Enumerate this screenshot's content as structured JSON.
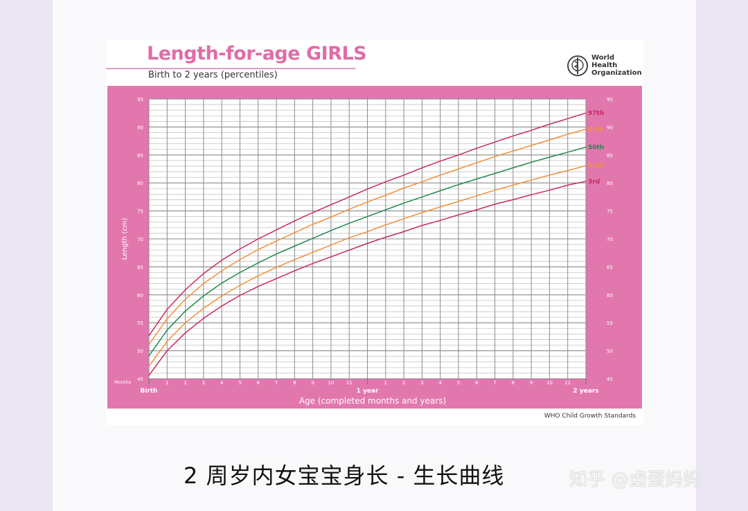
{
  "header": {
    "title": "Length-for-age GIRLS",
    "subtitle": "Birth to 2 years (percentiles)",
    "logo_text": "World Health Organization"
  },
  "footer": "WHO Child Growth Standards",
  "caption": "2 周岁内女宝宝身长 - 生长曲线",
  "watermark": "知乎 @卤蛋妈妈",
  "colors": {
    "frame": "#e277ae",
    "title": "#e06ca6",
    "p97_p3": "#c8285e",
    "p85_p15": "#f0903a",
    "p50": "#1f8a4c"
  },
  "chart_data": {
    "type": "line",
    "title": "Length-for-age GIRLS",
    "subtitle": "Birth to 2 years (percentiles)",
    "xlabel": "Age (completed months and years)",
    "ylabel": "Length (cm)",
    "months_label": "Months",
    "x_unit": "months",
    "xlim": [
      0,
      24
    ],
    "ylim": [
      45,
      95
    ],
    "y_ticks": [
      45,
      50,
      55,
      60,
      65,
      70,
      75,
      80,
      85,
      90,
      95
    ],
    "x_tick_labels": [
      "1",
      "2",
      "3",
      "4",
      "5",
      "6",
      "7",
      "8",
      "9",
      "10",
      "11",
      "",
      "1",
      "2",
      "3",
      "4",
      "5",
      "6",
      "7",
      "8",
      "9",
      "10",
      "11"
    ],
    "x_major_labels": [
      {
        "month": 0,
        "label": "Birth"
      },
      {
        "month": 12,
        "label": "1 year"
      },
      {
        "month": 24,
        "label": "2 years"
      }
    ],
    "grid": true,
    "x": [
      0,
      1,
      2,
      3,
      4,
      5,
      6,
      7,
      8,
      9,
      10,
      11,
      12,
      13,
      14,
      15,
      16,
      17,
      18,
      19,
      20,
      21,
      22,
      23,
      24
    ],
    "series": [
      {
        "name": "97th",
        "color": "#c8285e",
        "values": [
          52.7,
          57.4,
          60.9,
          63.8,
          66.2,
          68.2,
          70.0,
          71.6,
          73.2,
          74.7,
          76.1,
          77.5,
          78.9,
          80.2,
          81.4,
          82.7,
          83.9,
          85.0,
          86.2,
          87.3,
          88.4,
          89.4,
          90.5,
          91.5,
          92.5
        ]
      },
      {
        "name": "85th",
        "color": "#f0903a",
        "values": [
          51.1,
          55.7,
          59.2,
          62.0,
          64.3,
          66.3,
          68.1,
          69.6,
          71.1,
          72.6,
          73.9,
          75.3,
          76.6,
          77.8,
          79.1,
          80.2,
          81.4,
          82.5,
          83.6,
          84.7,
          85.7,
          86.7,
          87.7,
          88.7,
          89.6
        ]
      },
      {
        "name": "50th",
        "color": "#1f8a4c",
        "values": [
          49.1,
          53.7,
          57.1,
          59.8,
          62.1,
          64.0,
          65.7,
          67.3,
          68.7,
          70.1,
          71.5,
          72.8,
          74.0,
          75.2,
          76.4,
          77.5,
          78.6,
          79.7,
          80.7,
          81.7,
          82.7,
          83.7,
          84.6,
          85.5,
          86.4
        ]
      },
      {
        "name": "15th",
        "color": "#f0903a",
        "values": [
          47.2,
          51.7,
          55.0,
          57.6,
          59.8,
          61.7,
          63.4,
          64.9,
          66.3,
          67.6,
          68.9,
          70.2,
          71.3,
          72.5,
          73.6,
          74.7,
          75.7,
          76.7,
          77.7,
          78.7,
          79.6,
          80.5,
          81.4,
          82.2,
          83.1
        ]
      },
      {
        "name": "3rd",
        "color": "#c8285e",
        "values": [
          45.6,
          50.0,
          53.2,
          55.8,
          58.0,
          59.9,
          61.5,
          62.9,
          64.3,
          65.6,
          66.8,
          68.0,
          69.2,
          70.3,
          71.3,
          72.4,
          73.3,
          74.3,
          75.2,
          76.2,
          77.0,
          77.9,
          78.7,
          79.6,
          80.3
        ]
      }
    ]
  }
}
